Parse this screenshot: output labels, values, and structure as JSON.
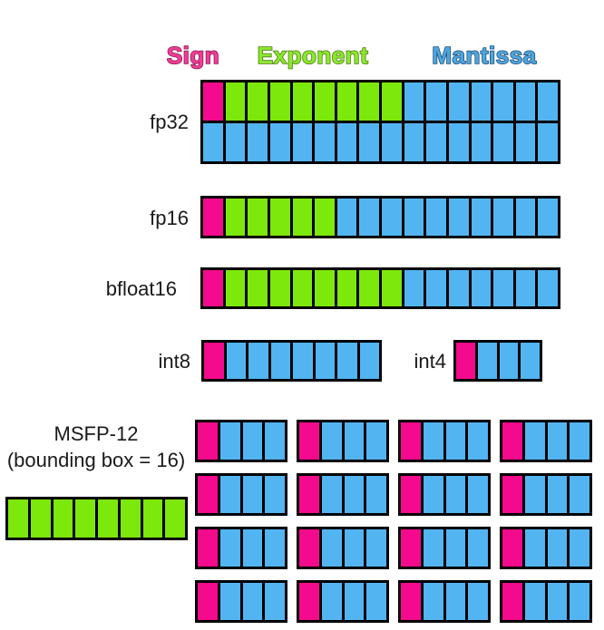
{
  "legend": {
    "sign": {
      "label": "Sign",
      "fill": "#F03D96",
      "outline": "#8A1A52"
    },
    "exponent": {
      "label": "Exponent",
      "fill": "#8CE92C",
      "outline": "#4C7A14"
    },
    "mantissa": {
      "label": "Mantissa",
      "fill": "#4EA6DE",
      "outline": "#1F4E79"
    }
  },
  "colors": {
    "sign_cell": "#F40A8C",
    "exponent_cell": "#7CE80C",
    "mantissa_cell": "#52B5F2",
    "cell_border": "#000000"
  },
  "formats": {
    "fp32": {
      "label": "fp32",
      "rows": [
        "SEEEEEEEEMMMMMMM",
        "MMMMMMMMMMMMMMMM"
      ]
    },
    "fp16": {
      "label": "fp16",
      "rows": [
        "SEEEEEMMMMMMMMMM"
      ]
    },
    "bfloat16": {
      "label": "bfloat16",
      "rows": [
        "SEEEEEEEEMMMMMMM"
      ]
    },
    "int8": {
      "label": "int8",
      "rows": [
        "SMMMMMMM"
      ]
    },
    "int4": {
      "label": "int4",
      "rows": [
        "SMMM"
      ]
    }
  },
  "msfp": {
    "label_line1": "MSFP-12",
    "label_line2": "(bounding box = 16)",
    "shared_exponent_row": "EEEEEEEE",
    "element_pattern": "SMMM",
    "grid": {
      "rows": 4,
      "cols": 4
    }
  }
}
